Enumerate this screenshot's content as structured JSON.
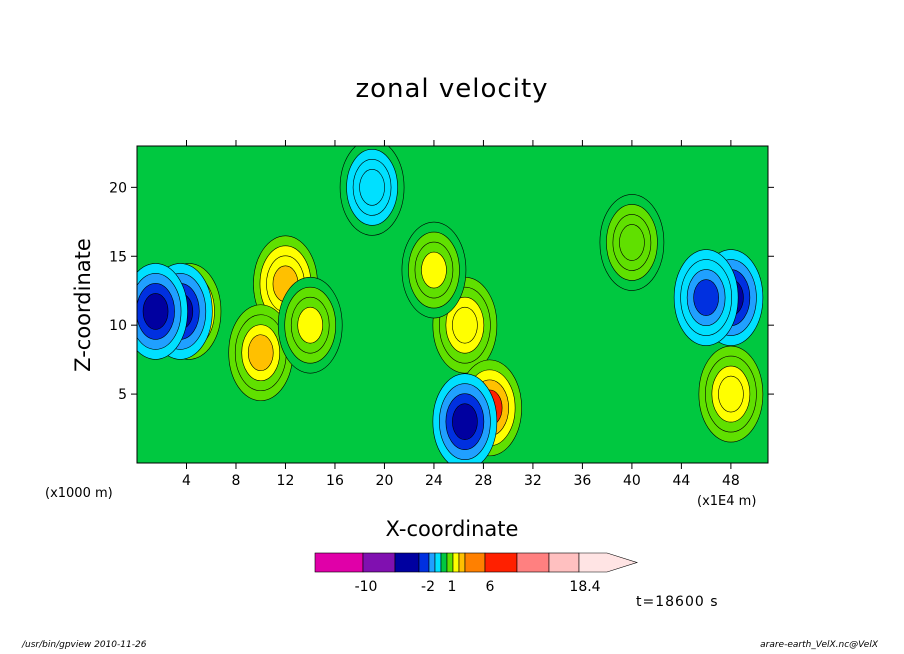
{
  "title": "zonal velocity",
  "x_axis": {
    "label": "X-coordinate",
    "unit_left": "(x1000 m)",
    "unit_right": "(x1E4 m)",
    "ticks": [
      "4",
      "8",
      "12",
      "16",
      "20",
      "24",
      "28",
      "32",
      "36",
      "40",
      "44",
      "48"
    ]
  },
  "y_axis": {
    "label": "Z-coordinate",
    "ticks": [
      "5",
      "10",
      "15",
      "20"
    ]
  },
  "colorbar": {
    "labels": [
      "-10",
      "-2",
      "1",
      "6",
      "18.4"
    ],
    "colors": [
      "#e000a8",
      "#8010b0",
      "#0000a0",
      "#0030e0",
      "#20a0ff",
      "#00e0ff",
      "#00c840",
      "#60e000",
      "#ffff00",
      "#ffc000",
      "#ff8000",
      "#ff2000",
      "#ff8080",
      "#ffc0c0",
      "#ffe4e4"
    ]
  },
  "timestamp": "t=18600 s",
  "footer_left": "/usr/bin/gpview   2010-11-26",
  "footer_right": "arare-earth_VelX.nc@VelX",
  "chart_data": {
    "type": "heatmap",
    "title": "zonal velocity",
    "xlabel": "X-coordinate",
    "ylabel": "Z-coordinate",
    "xlim": [
      0,
      51
    ],
    "ylim": [
      0,
      23
    ],
    "x_ticks": [
      4,
      8,
      12,
      16,
      20,
      24,
      28,
      32,
      36,
      40,
      44,
      48
    ],
    "y_ticks": [
      5,
      10,
      15,
      20
    ],
    "colorbar_range": [
      -14,
      18.4
    ],
    "features": [
      {
        "x": 4.2,
        "z": 11,
        "value": 8
      },
      {
        "x": 3.5,
        "z": 11,
        "value": -8
      },
      {
        "x": 1.5,
        "z": 11,
        "value": -8
      },
      {
        "x": 12,
        "z": 13,
        "value": 7
      },
      {
        "x": 10,
        "z": 8,
        "value": 6
      },
      {
        "x": 14,
        "z": 10,
        "value": 4
      },
      {
        "x": 26.5,
        "z": 10,
        "value": 5
      },
      {
        "x": 28.5,
        "z": 4,
        "value": 10
      },
      {
        "x": 26.5,
        "z": 3,
        "value": -8
      },
      {
        "x": 48,
        "z": 12,
        "value": -8
      },
      {
        "x": 46,
        "z": 12,
        "value": -6
      },
      {
        "x": 48,
        "z": 5,
        "value": 5
      },
      {
        "x": 40,
        "z": 16,
        "value": 3
      },
      {
        "x": 19,
        "z": 20,
        "value": -3
      },
      {
        "x": 24,
        "z": 14,
        "value": 4
      }
    ]
  }
}
